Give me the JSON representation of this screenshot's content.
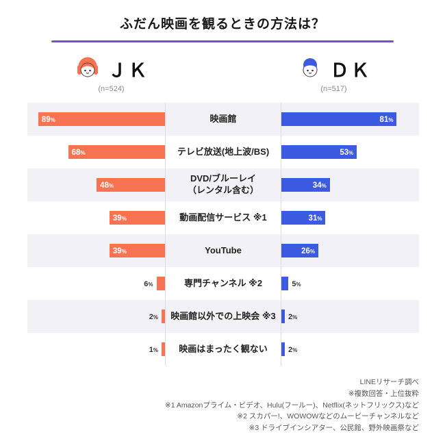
{
  "title": "ふだん映画を観るときの方法は？",
  "accent_color": "#7A4FCB",
  "groups": {
    "left": {
      "label": "ＪＫ",
      "n_label": "(n=524)",
      "color": "#F87352",
      "icon": "girl-avatar"
    },
    "right": {
      "label": "ＤＫ",
      "n_label": "(n=517)",
      "color": "#3D5BE1",
      "icon": "boy-avatar"
    }
  },
  "chart_data": {
    "type": "bar",
    "layout": "butterfly",
    "unit": "%",
    "xlim": [
      0,
      100
    ],
    "value_labels": true,
    "categories": [
      "映画館",
      "テレビ放送(地上波/BS)",
      "DVD/ブルーレイ\n（レンタル含む）",
      "動画配信サービス ※1",
      "YouTube",
      "専門チャンネル ※2",
      "映画館以外での上映会 ※3",
      "映画はまったく観ない"
    ],
    "series": [
      {
        "name": "ＪＫ",
        "color": "#F87352",
        "values": [
          89,
          68,
          48,
          39,
          39,
          6,
          2,
          1
        ]
      },
      {
        "name": "ＤＫ",
        "color": "#3D5BE1",
        "values": [
          81,
          53,
          34,
          31,
          26,
          5,
          2,
          2
        ]
      }
    ]
  },
  "footer": {
    "lines": [
      "LINEリサーチ調べ",
      "※複数回答・上位抜粋",
      "※1 Amazonプライム・ビデオ、Hulu(フールー)、Netflix(ネットフリックス)など",
      "※2 スカパー!、WOWOWなどのムービーチャンネルなど",
      "※3 ドライブインシアター、公民館、野外映画祭など"
    ]
  }
}
